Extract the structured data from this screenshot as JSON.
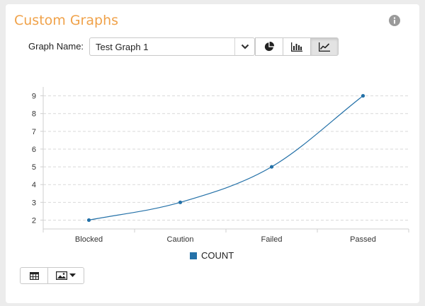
{
  "header": {
    "title": "Custom Graphs",
    "info_icon": "info-circle-icon"
  },
  "controls": {
    "graph_name_label": "Graph Name:",
    "graph_name_value": "Test Graph 1",
    "chart_type_buttons": [
      {
        "icon": "pie-chart-icon",
        "active": false
      },
      {
        "icon": "bar-chart-icon",
        "active": false
      },
      {
        "icon": "line-chart-icon",
        "active": true
      }
    ]
  },
  "toolbar": {
    "table_icon": "table-icon",
    "image_icon": "image-icon",
    "dropdown_icon": "caret-down-icon"
  },
  "colors": {
    "title": "#f0a24a",
    "series": "#2471a8"
  },
  "chart_data": {
    "type": "line",
    "categories": [
      "Blocked",
      "Caution",
      "Failed",
      "Passed"
    ],
    "series": [
      {
        "name": "COUNT",
        "values": [
          2,
          3,
          5,
          9
        ]
      }
    ],
    "yticks": [
      2,
      3,
      4,
      5,
      6,
      7,
      8,
      9
    ],
    "ylim": [
      1.5,
      9.5
    ],
    "grid": true,
    "legend": "bottom"
  }
}
